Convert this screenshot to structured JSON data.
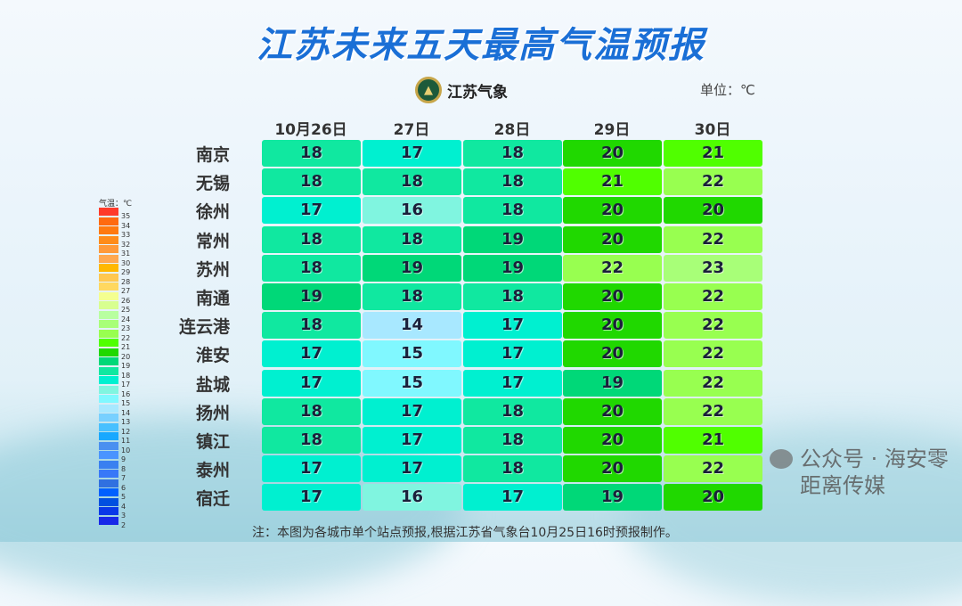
{
  "title": "江苏未来五天最高气温预报",
  "logo_text": "江苏气象",
  "unit": "单位：℃",
  "dates": [
    "10月26日",
    "27日",
    "28日",
    "29日",
    "30日"
  ],
  "rows": [
    {
      "city": "南京",
      "values": [
        18,
        17,
        18,
        20,
        21
      ]
    },
    {
      "city": "无锡",
      "values": [
        18,
        18,
        18,
        21,
        22
      ]
    },
    {
      "city": "徐州",
      "values": [
        17,
        16,
        18,
        20,
        20
      ]
    },
    {
      "city": "常州",
      "values": [
        18,
        18,
        19,
        20,
        22
      ]
    },
    {
      "city": "苏州",
      "values": [
        18,
        19,
        19,
        22,
        23
      ]
    },
    {
      "city": "南通",
      "values": [
        19,
        18,
        18,
        20,
        22
      ]
    },
    {
      "city": "连云港",
      "values": [
        18,
        14,
        17,
        20,
        22
      ]
    },
    {
      "city": "淮安",
      "values": [
        17,
        15,
        17,
        20,
        22
      ]
    },
    {
      "city": "盐城",
      "values": [
        17,
        15,
        17,
        19,
        22
      ]
    },
    {
      "city": "扬州",
      "values": [
        18,
        17,
        18,
        20,
        22
      ]
    },
    {
      "city": "镇江",
      "values": [
        18,
        17,
        18,
        20,
        21
      ]
    },
    {
      "city": "泰州",
      "values": [
        17,
        17,
        18,
        20,
        22
      ]
    },
    {
      "city": "宿迁",
      "values": [
        17,
        16,
        17,
        19,
        20
      ]
    }
  ],
  "legend": {
    "title": "气温：℃",
    "levels": [
      {
        "v": "35",
        "c": "#ff3a2a"
      },
      {
        "v": "34",
        "c": "#ff6a10"
      },
      {
        "v": "33",
        "c": "#ff7a10"
      },
      {
        "v": "32",
        "c": "#ff8c1a"
      },
      {
        "v": "31",
        "c": "#ff9a3a"
      },
      {
        "v": "30",
        "c": "#ffa850"
      },
      {
        "v": "29",
        "c": "#ffb800"
      },
      {
        "v": "28",
        "c": "#ffc850"
      },
      {
        "v": "27",
        "c": "#ffd860"
      },
      {
        "v": "26",
        "c": "#f4ff90"
      },
      {
        "v": "25",
        "c": "#d8ff90"
      },
      {
        "v": "24",
        "c": "#b8ffa0"
      },
      {
        "v": "23",
        "c": "#a8ff78"
      },
      {
        "v": "22",
        "c": "#98ff50"
      },
      {
        "v": "21",
        "c": "#50ff00"
      },
      {
        "v": "20",
        "c": "#20d800"
      },
      {
        "v": "19",
        "c": "#00d878"
      },
      {
        "v": "18",
        "c": "#10e8a0"
      },
      {
        "v": "17",
        "c": "#00f0d0"
      },
      {
        "v": "16",
        "c": "#80f5e0"
      },
      {
        "v": "15",
        "c": "#80f8ff"
      },
      {
        "v": "14",
        "c": "#a8e8ff"
      },
      {
        "v": "13",
        "c": "#78d0ff"
      },
      {
        "v": "12",
        "c": "#48c0ff"
      },
      {
        "v": "11",
        "c": "#18a8ff"
      },
      {
        "v": "10",
        "c": "#4a90f0"
      },
      {
        "v": "9",
        "c": "#4a94ff"
      },
      {
        "v": "8",
        "c": "#3a80f0"
      },
      {
        "v": "7",
        "c": "#3878f8"
      },
      {
        "v": "6",
        "c": "#3070e0"
      },
      {
        "v": "5",
        "c": "#0060ff"
      },
      {
        "v": "4",
        "c": "#0050e0"
      },
      {
        "v": "3",
        "c": "#0838e8"
      },
      {
        "v": "2",
        "c": "#1828e8"
      }
    ]
  },
  "note": "注：本图为各城市单个站点预报,根据江苏省气象台10月25日16时预报制作。",
  "watermark": "公众号 · 海安零距离传媒"
}
